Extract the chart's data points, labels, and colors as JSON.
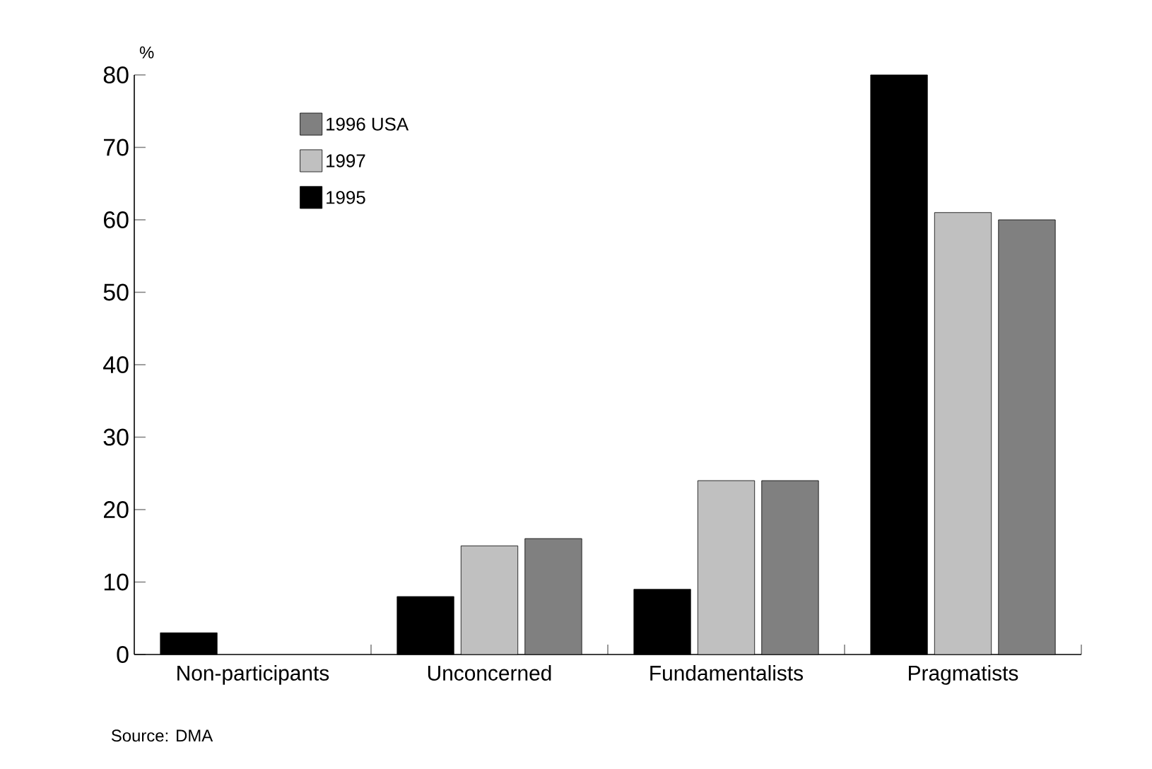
{
  "chart_data": {
    "type": "bar",
    "ylabel": "%",
    "categories": [
      "Non-participants",
      "Unconcerned",
      "Fundamentalists",
      "Pragmatists"
    ],
    "series": [
      {
        "name": "1995",
        "color": "#000000",
        "values": [
          3,
          8,
          9,
          80
        ]
      },
      {
        "name": "1997",
        "color": "#c0c0c0",
        "values": [
          null,
          15,
          24,
          61
        ]
      },
      {
        "name": "1996 USA",
        "color": "#808080",
        "values": [
          null,
          16,
          24,
          60
        ]
      }
    ],
    "ylim": [
      0,
      80
    ],
    "yticks": [
      0,
      10,
      20,
      30,
      40,
      50,
      60,
      70,
      80
    ],
    "grid": false,
    "legend": "top left",
    "annotations": [
      "Source: DMA"
    ]
  }
}
